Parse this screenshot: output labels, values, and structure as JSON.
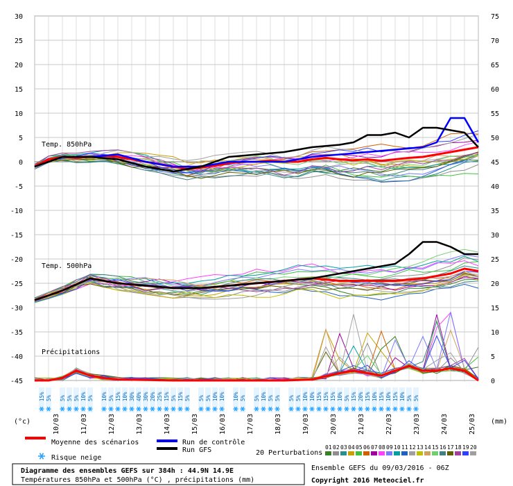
{
  "chart_data": {
    "type": "line",
    "title_line1": "Diagramme des ensembles GEFS sur 384h : 44.9N 14.9E",
    "title_line2": "Températures 850hPa et 500hPa (°C) , précipitations (mm)",
    "source_line": "Ensemble GEFS du 09/03/2016 - 06Z",
    "copyright": "Copyright 2016 Meteociel.fr",
    "left_unit": "(°c)",
    "right_unit": "(mm)",
    "left_ticks": [
      30,
      25,
      20,
      15,
      10,
      5,
      0,
      -5,
      -10,
      -15,
      -20,
      -25,
      -30,
      -35,
      -40,
      -45
    ],
    "right_ticks": [
      75,
      70,
      65,
      60,
      55,
      50,
      45,
      40,
      35,
      30,
      25,
      20,
      15,
      10,
      5,
      0
    ],
    "ylim": [
      -45,
      30
    ],
    "x_dates": [
      "10/03",
      "11/03",
      "12/03",
      "13/03",
      "14/03",
      "15/03",
      "16/03",
      "17/03",
      "18/03",
      "19/03",
      "20/03",
      "21/03",
      "22/03",
      "23/03",
      "24/03",
      "25/03"
    ],
    "panel_labels": {
      "t850": "Temp. 850hPa",
      "t500": "Temp. 500hPa",
      "precip": "Précipitations"
    },
    "legend": {
      "mean": "Moyenne des scénarios",
      "control": "Run de contrôle",
      "gfs": "Run GFS",
      "snow": "Risque neige",
      "perturbations": "20 Perturbations",
      "member_numbers": [
        "01",
        "02",
        "03",
        "04",
        "05",
        "06",
        "07",
        "08",
        "09",
        "10",
        "11",
        "12",
        "13",
        "14",
        "15",
        "16",
        "17",
        "18",
        "19",
        "20"
      ],
      "member_colors": [
        "#3a7f2a",
        "#8f8f8f",
        "#2a8f8f",
        "#c8a000",
        "#40c040",
        "#d06000",
        "#a000a0",
        "#ff40ff",
        "#7a7aff",
        "#00a0a0",
        "#2060c0",
        "#a0a0a0",
        "#c0c000",
        "#d0a060",
        "#70d070",
        "#408080",
        "#606000",
        "#a040a0",
        "#3040ff",
        "#a0a0a0"
      ],
      "colors": {
        "mean": "#ff0000",
        "control": "#0000ff",
        "gfs": "#000000",
        "snow": "#29a3ff"
      }
    },
    "snow_risk": [
      "15%",
      "5%",
      "",
      "5%",
      "5%",
      "5%",
      "10%",
      "5%",
      "",
      "10%",
      "5%",
      "15%",
      "10%",
      "30%",
      "40%",
      "30%",
      "20%",
      "25%",
      "15%",
      "5%",
      "15%",
      "5%",
      "",
      "5%",
      "5%",
      "10%",
      "10%",
      "",
      "10%",
      "5%",
      "",
      "5%",
      "10%",
      "5%",
      "5%",
      "",
      "5%",
      "5%",
      "10%",
      "10%",
      "15%",
      "15%",
      "15%",
      "10%",
      "5%",
      "15%",
      "20%",
      "15%",
      "10%",
      "15%",
      "10%",
      "15%",
      "10%",
      "5%",
      "5%"
    ],
    "series": [
      {
        "name": "Moyenne des scénarios 850hPa",
        "role": "mean",
        "x": [
          0,
          12,
          24,
          36,
          48,
          60,
          72,
          84,
          96,
          108,
          120,
          132,
          144,
          156,
          168,
          180,
          192,
          204,
          216,
          228,
          240,
          252,
          264,
          276,
          288,
          300,
          312,
          324,
          336,
          348,
          360,
          372,
          384
        ],
        "values": [
          -1,
          0.5,
          1,
          0.8,
          1,
          1.2,
          1,
          0.5,
          0,
          -0.5,
          -1,
          -1.5,
          -1.2,
          -0.8,
          -0.3,
          0,
          0,
          0.2,
          0,
          0,
          0.5,
          0.8,
          0.5,
          0.3,
          0.5,
          0.2,
          0.5,
          0.8,
          1,
          1.5,
          2,
          2.5,
          3
        ]
      },
      {
        "name": "Run de contrôle 850hPa",
        "role": "control",
        "x": [
          0,
          24,
          48,
          72,
          96,
          120,
          144,
          168,
          192,
          216,
          240,
          264,
          288,
          312,
          336,
          348,
          360,
          372,
          384
        ],
        "values": [
          -1,
          1,
          1,
          1.5,
          0,
          -1,
          -1,
          0,
          0,
          0,
          1,
          1.5,
          2,
          2.5,
          3,
          4,
          9,
          9,
          4
        ]
      },
      {
        "name": "Run GFS 850hPa",
        "role": "gfs",
        "x": [
          0,
          24,
          48,
          72,
          96,
          120,
          144,
          168,
          192,
          216,
          240,
          264,
          276,
          288,
          300,
          312,
          324,
          336,
          348,
          360,
          372,
          384
        ],
        "values": [
          -1,
          1,
          1,
          0.5,
          -1,
          -2,
          -1,
          1,
          1.5,
          2,
          3,
          3.5,
          4,
          5.5,
          5.5,
          6,
          5,
          7,
          7,
          6.5,
          6,
          3
        ]
      },
      {
        "name": "Moyenne des scénarios 500hPa",
        "role": "mean",
        "x": [
          0,
          24,
          48,
          72,
          96,
          120,
          144,
          168,
          192,
          216,
          240,
          264,
          288,
          312,
          336,
          360,
          372,
          384
        ],
        "values": [
          -28.5,
          -26.5,
          -24,
          -25,
          -25.5,
          -26,
          -26,
          -25.5,
          -25,
          -24.5,
          -24,
          -24.5,
          -24.5,
          -24.5,
          -24,
          -23,
          -22,
          -22.5
        ]
      },
      {
        "name": "Run GFS 500hPa",
        "role": "gfs",
        "x": [
          0,
          24,
          48,
          72,
          96,
          120,
          144,
          168,
          192,
          216,
          240,
          264,
          288,
          312,
          324,
          336,
          348,
          360,
          372,
          384
        ],
        "values": [
          -28.5,
          -26.5,
          -24,
          -25,
          -25.5,
          -26,
          -26,
          -25.5,
          -25,
          -24.5,
          -24,
          -23,
          -22,
          -21,
          -19,
          -16.5,
          -16.5,
          -17.5,
          -19,
          -19
        ]
      },
      {
        "name": "Moyenne des scénarios précipitations",
        "role": "mean",
        "x": [
          0,
          12,
          24,
          36,
          48,
          60,
          72,
          96,
          120,
          144,
          168,
          192,
          216,
          240,
          264,
          276,
          288,
          300,
          312,
          324,
          336,
          348,
          360,
          372,
          384
        ],
        "values": [
          0,
          0,
          0.5,
          2,
          1,
          0.5,
          0.2,
          0.1,
          0,
          0,
          0,
          0,
          0,
          0.2,
          1.5,
          2,
          1.5,
          1,
          2,
          3,
          2,
          2,
          2.5,
          2,
          0
        ]
      }
    ]
  }
}
